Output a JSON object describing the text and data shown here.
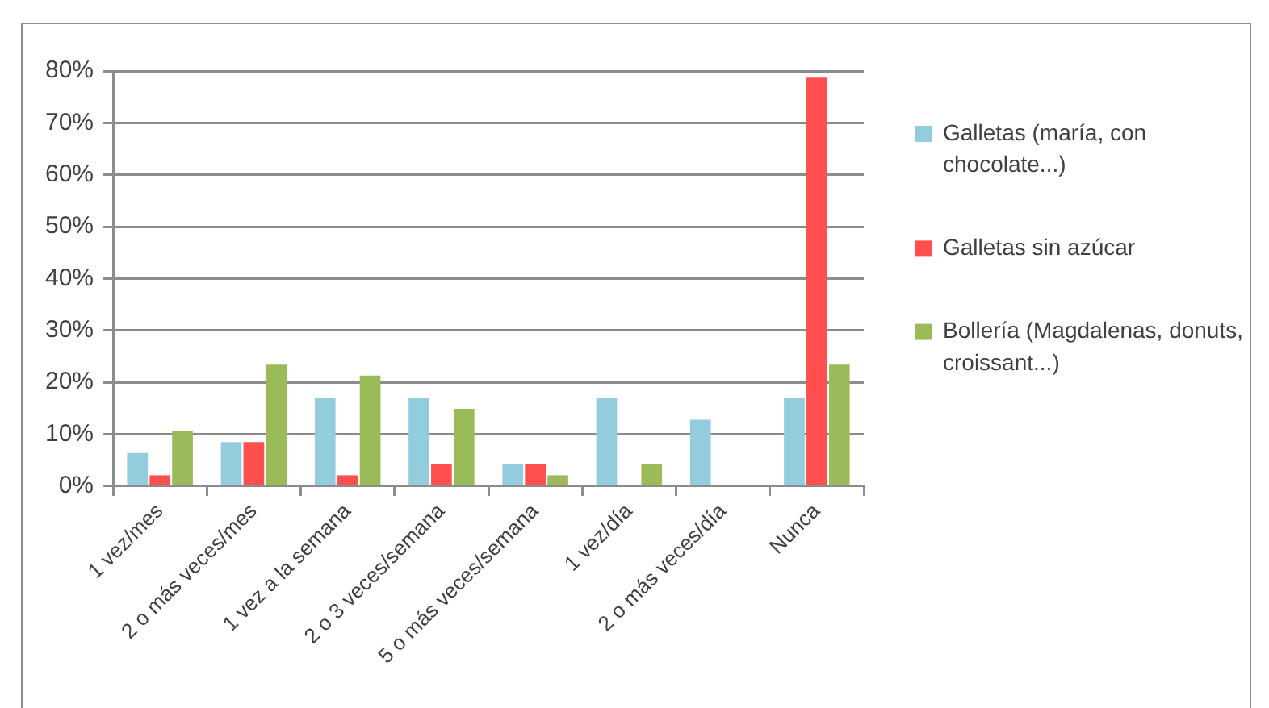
{
  "chart_data": {
    "type": "bar",
    "categories": [
      "1 vez/mes",
      "2 o más veces/mes",
      "1 vez a la semana",
      "2 o 3 veces/semana",
      "5 o más veces/semana",
      "1 vez/día",
      "2 o más veces/día",
      "Nunca"
    ],
    "series": [
      {
        "name": "Galletas (maría, con chocolate...)",
        "color": "#93cddd",
        "values": [
          6.4,
          8.5,
          17,
          17,
          4.3,
          17,
          12.8,
          17
        ]
      },
      {
        "name": "Galletas sin azúcar",
        "color": "#ff4f4f",
        "values": [
          2.1,
          8.5,
          2.1,
          4.3,
          4.3,
          0,
          0,
          78.7
        ]
      },
      {
        "name": "Bollería (Magdalenas, donuts, croissant...)",
        "color": "#9bbb59",
        "values": [
          10.6,
          23.4,
          21.3,
          14.9,
          2.1,
          4.3,
          0,
          23.4
        ]
      }
    ],
    "ylim": [
      0,
      80
    ],
    "yticks": [
      {
        "value": 0,
        "label": "0%"
      },
      {
        "value": 10,
        "label": "10%"
      },
      {
        "value": 20,
        "label": "20%"
      },
      {
        "value": 30,
        "label": "30%"
      },
      {
        "value": 40,
        "label": "40%"
      },
      {
        "value": 50,
        "label": "50%"
      },
      {
        "value": 60,
        "label": "60%"
      },
      {
        "value": 70,
        "label": "70%"
      },
      {
        "value": 80,
        "label": "80%"
      }
    ],
    "grid": "y",
    "legend": "right"
  }
}
